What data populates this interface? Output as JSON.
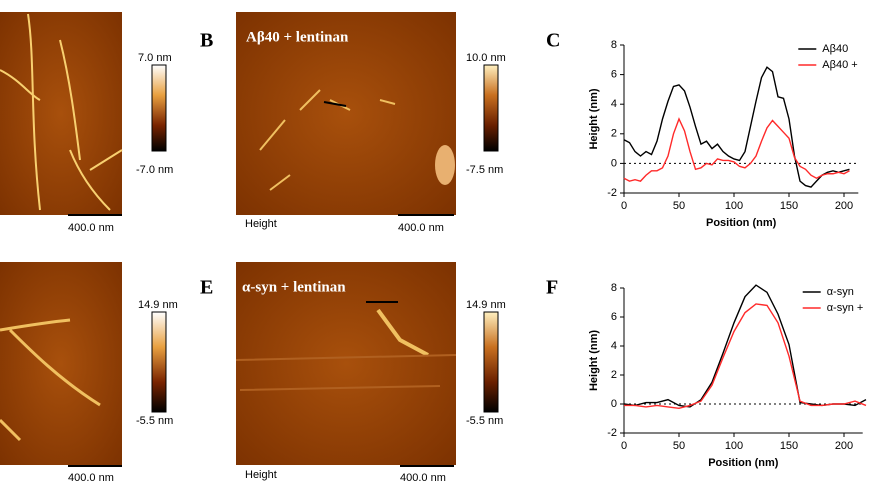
{
  "images": [
    {
      "colorbar_max": "7.0 nm",
      "colorbar_min": "-7.0 nm",
      "scale_bar": "400.0 nm"
    },
    {
      "label": "B",
      "title": "Aβ40 + lentinan",
      "caption": "Height",
      "colorbar_max": "10.0 nm",
      "colorbar_min": "-7.5 nm",
      "scale_bar": "400.0 nm"
    },
    {
      "colorbar_max": "14.9 nm",
      "colorbar_min": "-5.5 nm",
      "scale_bar": "400.0 nm"
    },
    {
      "label": "E",
      "title": "α-syn + lentinan",
      "caption": "Height",
      "colorbar_max": "14.9 nm",
      "colorbar_min": "-5.5 nm",
      "scale_bar": "400.0 nm"
    }
  ],
  "chart_data": [
    {
      "type": "line",
      "label": "C",
      "x_label": "Position (nm)",
      "y_label": "Height (nm)",
      "x": [
        0,
        5,
        10,
        15,
        20,
        25,
        30,
        35,
        40,
        45,
        50,
        55,
        60,
        65,
        70,
        75,
        80,
        85,
        90,
        95,
        100,
        105,
        110,
        115,
        120,
        125,
        130,
        135,
        140,
        145,
        150,
        155,
        160,
        165,
        170,
        175,
        180,
        185,
        190,
        195,
        200,
        205
      ],
      "series": [
        {
          "name": "Aβ40",
          "color": "#000000",
          "values": [
            1.6,
            1.4,
            0.8,
            0.5,
            0.8,
            0.6,
            1.5,
            3.0,
            4.2,
            5.2,
            5.3,
            4.9,
            3.8,
            2.5,
            1.3,
            1.5,
            1.0,
            1.3,
            0.8,
            0.5,
            0.3,
            0.2,
            0.8,
            2.5,
            4.2,
            5.8,
            6.5,
            6.2,
            4.5,
            4.4,
            3.0,
            0.5,
            -1.2,
            -1.5,
            -1.6,
            -1.2,
            -0.8,
            -0.6,
            -0.5,
            -0.6,
            -0.5,
            -0.4
          ]
        },
        {
          "name": "Aβ40 +",
          "color": "#ff2a2a",
          "values": [
            -1.0,
            -1.2,
            -1.1,
            -1.2,
            -0.8,
            -0.5,
            -0.5,
            -0.3,
            0.5,
            2.0,
            3.0,
            2.2,
            0.8,
            -0.4,
            -0.3,
            0.0,
            -0.1,
            0.3,
            0.2,
            0.2,
            0.1,
            -0.2,
            -0.3,
            0.0,
            0.5,
            1.5,
            2.4,
            2.9,
            2.5,
            2.1,
            1.7,
            0.4,
            -0.2,
            -0.4,
            -0.8,
            -1.0,
            -0.8,
            -0.7,
            -0.7,
            -0.6,
            -0.7,
            -0.5
          ]
        }
      ],
      "xlim": [
        0,
        213
      ],
      "xticks": [
        0,
        50,
        100,
        150,
        200
      ],
      "ylim": [
        -2,
        8
      ],
      "yticks": [
        -2,
        0,
        2,
        4,
        6,
        8
      ],
      "zero_line": true,
      "legend": "top-right"
    },
    {
      "type": "line",
      "label": "F",
      "x_label": "Position (nm)",
      "y_label": "Height (nm)",
      "x": [
        0,
        10,
        20,
        30,
        40,
        50,
        60,
        70,
        80,
        90,
        100,
        110,
        120,
        130,
        140,
        150,
        160,
        170,
        180,
        190,
        200,
        210,
        220
      ],
      "series": [
        {
          "name": "α-syn",
          "color": "#000000",
          "values": [
            0,
            -0.1,
            0.1,
            0.1,
            0.3,
            -0.1,
            -0.2,
            0.3,
            1.5,
            3.5,
            5.6,
            7.4,
            8.2,
            7.7,
            6.2,
            4.1,
            0.1,
            0,
            -0.1,
            0,
            0,
            -0.1,
            0.3
          ]
        },
        {
          "name": "α-syn +",
          "color": "#ff2a2a",
          "values": [
            -0.1,
            -0.1,
            -0.2,
            -0.1,
            -0.2,
            -0.3,
            -0.1,
            0.2,
            1.3,
            3.2,
            5.0,
            6.3,
            6.9,
            6.8,
            5.6,
            3.3,
            0.2,
            -0.1,
            -0.1,
            0,
            0,
            0.2,
            -0.1
          ]
        }
      ],
      "xlim": [
        0,
        217
      ],
      "xticks": [
        0,
        50,
        100,
        150,
        200
      ],
      "ylim": [
        -2,
        8
      ],
      "yticks": [
        -2,
        0,
        2,
        4,
        6,
        8
      ],
      "zero_line": true,
      "legend": "top-right"
    }
  ]
}
